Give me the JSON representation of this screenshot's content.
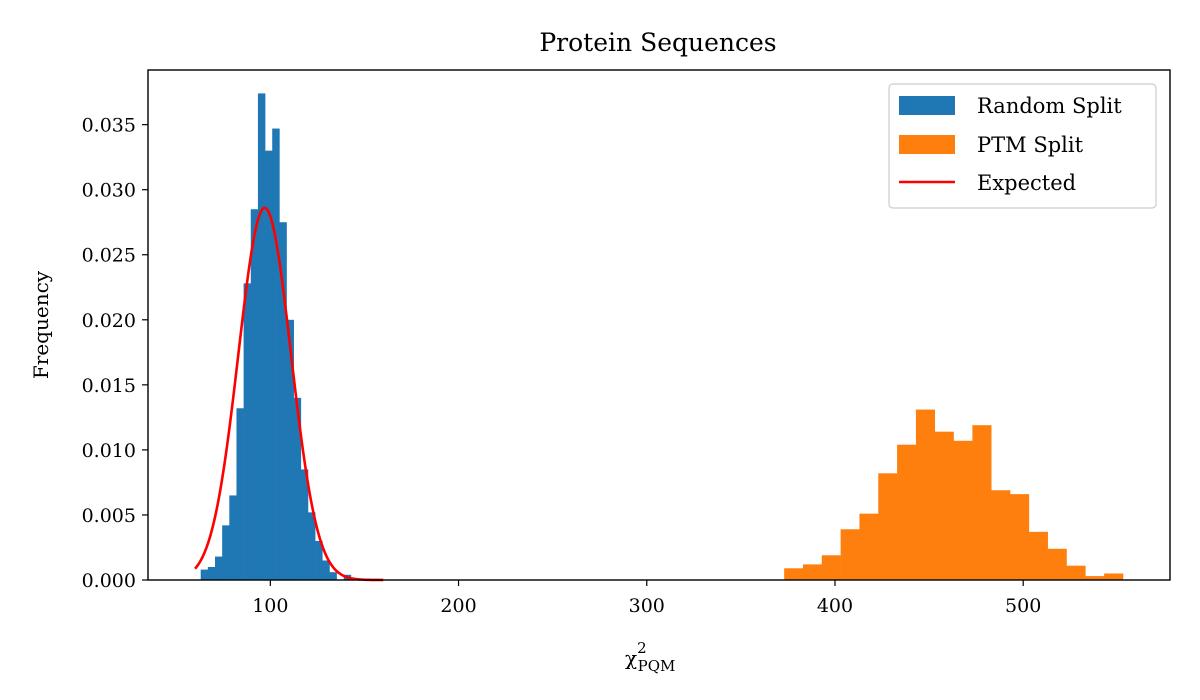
{
  "chart_data": {
    "type": "histogram",
    "title": "Protein Sequences",
    "xlabel_main": "χ",
    "xlabel_sup": "2",
    "xlabel_sub": "PQM",
    "ylabel": "Frequency",
    "xlim": [
      35,
      578
    ],
    "ylim": [
      0,
      0.0392
    ],
    "xticks": [
      {
        "value": 100,
        "label": "100"
      },
      {
        "value": 200,
        "label": "200"
      },
      {
        "value": 300,
        "label": "300"
      },
      {
        "value": 400,
        "label": "400"
      },
      {
        "value": 500,
        "label": "500"
      }
    ],
    "yticks": [
      {
        "value": 0.0,
        "label": "0.000"
      },
      {
        "value": 0.005,
        "label": "0.005"
      },
      {
        "value": 0.01,
        "label": "0.010"
      },
      {
        "value": 0.015,
        "label": "0.015"
      },
      {
        "value": 0.02,
        "label": "0.020"
      },
      {
        "value": 0.025,
        "label": "0.025"
      },
      {
        "value": 0.03,
        "label": "0.030"
      },
      {
        "value": 0.035,
        "label": "0.035"
      }
    ],
    "legend_position": "top-right",
    "series": [
      {
        "name": "Random Split",
        "kind": "histogram",
        "color": "#1f77b4",
        "bin_start": 63.0,
        "bin_width": 3.8,
        "values": [
          0.0008,
          0.001,
          0.0018,
          0.0042,
          0.0065,
          0.0132,
          0.0228,
          0.0285,
          0.0374,
          0.033,
          0.0347,
          0.0275,
          0.02,
          0.014,
          0.0085,
          0.0052,
          0.003,
          0.0015,
          0.0006,
          0.0,
          0.0004
        ]
      },
      {
        "name": "PTM Split",
        "kind": "histogram",
        "color": "#ff7f0e",
        "bin_start": 373.0,
        "bin_width": 10.0,
        "values": [
          0.0009,
          0.0012,
          0.0019,
          0.0039,
          0.0051,
          0.0082,
          0.0104,
          0.0131,
          0.0114,
          0.0107,
          0.0119,
          0.0069,
          0.0066,
          0.0037,
          0.0024,
          0.0011,
          0.0003,
          0.0005
        ]
      },
      {
        "name": "Expected",
        "kind": "line",
        "color": "#ff0000",
        "x_start": 60,
        "x_end": 160,
        "mean": 97,
        "std": 14,
        "peak": 0.0286
      }
    ]
  }
}
